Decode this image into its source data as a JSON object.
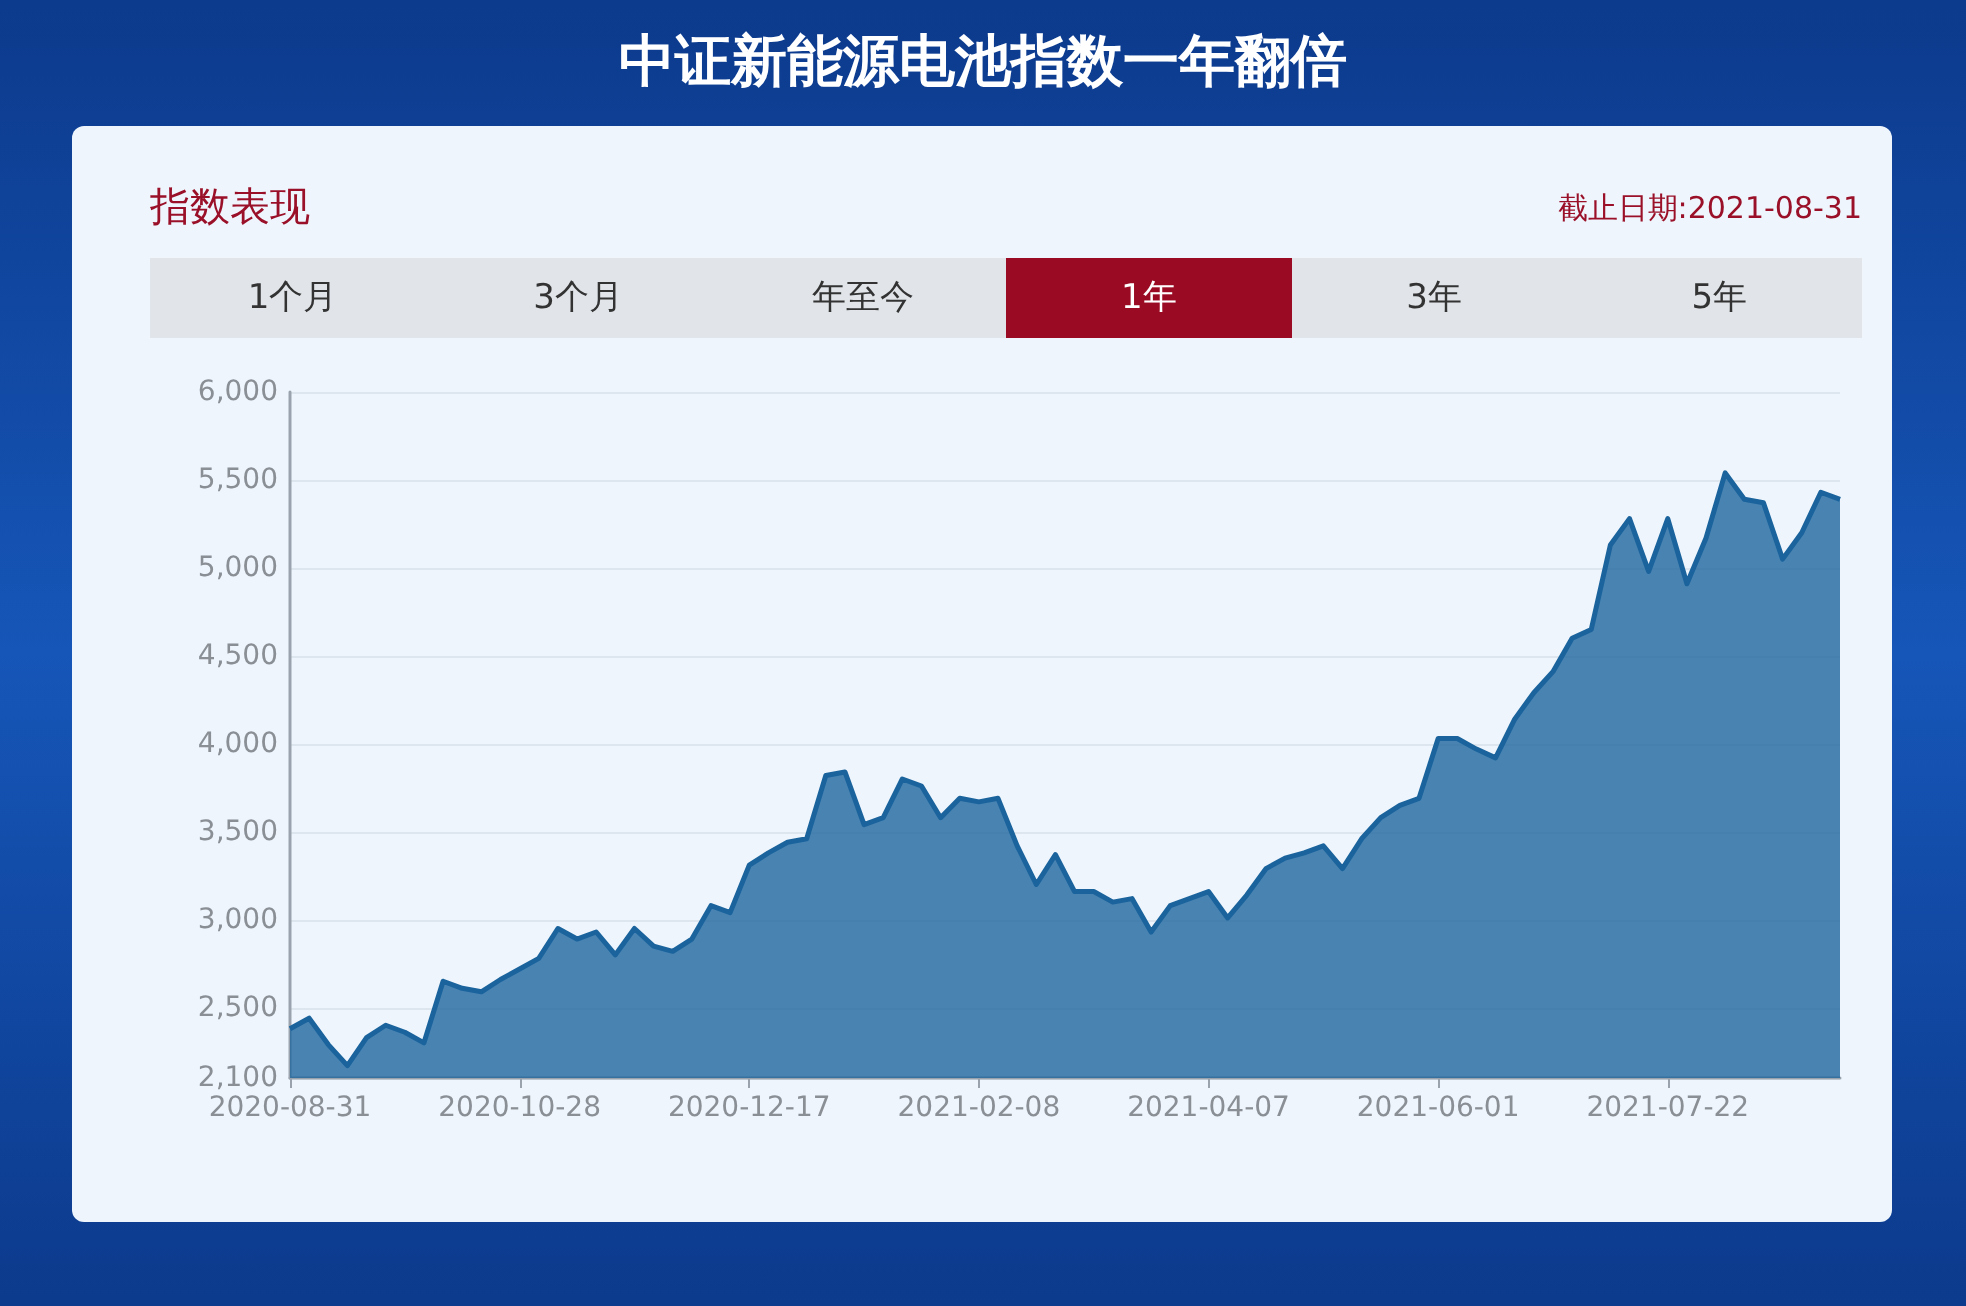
{
  "chart_data": {
    "type": "area",
    "title": "中证新能源电池指数一年翻倍",
    "subtitle": "指数表现",
    "annotations": [
      "截止日期:2021-08-31",
      "1个月",
      "3个月",
      "年至今",
      "1年",
      "3年",
      "5年"
    ],
    "categories": [
      "2020-08-31",
      null,
      null,
      null,
      null,
      null,
      null,
      null,
      null,
      null,
      null,
      null,
      "2020-10-28",
      null,
      null,
      null,
      null,
      null,
      null,
      null,
      null,
      null,
      null,
      null,
      "2020-12-17",
      null,
      null,
      null,
      null,
      null,
      null,
      null,
      null,
      null,
      null,
      null,
      "2021-02-08",
      null,
      null,
      null,
      null,
      null,
      null,
      null,
      null,
      null,
      null,
      null,
      "2021-04-07",
      null,
      null,
      null,
      null,
      null,
      null,
      null,
      null,
      null,
      null,
      null,
      "2021-06-01",
      null,
      null,
      null,
      null,
      null,
      null,
      null,
      null,
      null,
      null,
      null,
      "2021-07-22",
      null,
      null,
      null,
      null,
      null,
      null,
      null,
      null,
      null
    ],
    "series": [
      {
        "color": "#1a639c",
        "values": [
          2380,
          2440,
          2290,
          2170,
          2330,
          2400,
          2360,
          2300,
          2650,
          2610,
          2590,
          2660,
          2720,
          2780,
          2950,
          2890,
          2930,
          2800,
          2950,
          2850,
          2820,
          2890,
          3080,
          3040,
          3310,
          3380,
          3440,
          3460,
          3820,
          3840,
          3540,
          3580,
          3800,
          3760,
          3580,
          3690,
          3670,
          3690,
          3420,
          3200,
          3370,
          3160,
          3160,
          3100,
          3120,
          2930,
          3080,
          3120,
          3160,
          3010,
          3140,
          3290,
          3350,
          3380,
          3420,
          3290,
          3460,
          3580,
          3650,
          3690,
          4030,
          4030,
          3970,
          3920,
          4140,
          4290,
          4410,
          4600,
          4650,
          5130,
          5280,
          4980,
          5280,
          4910,
          5170,
          5540,
          5390,
          5370,
          5050,
          5200,
          5430,
          5390
        ]
      }
    ],
    "ylim": [
      2100,
      6000
    ],
    "yticks": [
      {
        "value": 2100,
        "label": "2,100"
      },
      {
        "value": 2500,
        "label": "2,500"
      },
      {
        "value": 3000,
        "label": "3,000"
      },
      {
        "value": 3500,
        "label": "3,500"
      },
      {
        "value": 4000,
        "label": "4,000"
      },
      {
        "value": 4500,
        "label": "4,500"
      },
      {
        "value": 5000,
        "label": "5,000"
      },
      {
        "value": 5500,
        "label": "5,500"
      },
      {
        "value": 6000,
        "label": "6,000"
      }
    ],
    "grid": "y"
  }
}
